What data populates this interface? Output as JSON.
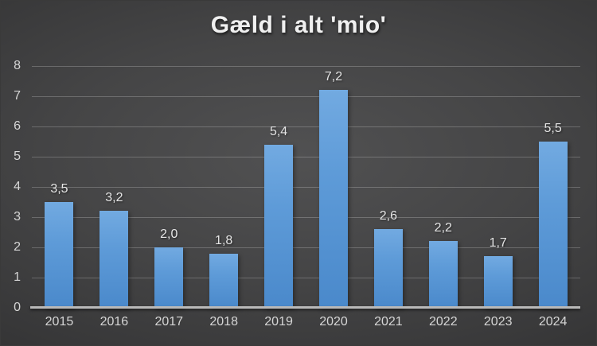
{
  "chart_data": {
    "type": "bar",
    "title": "Gæld i alt 'mio'",
    "categories": [
      "2015",
      "2016",
      "2017",
      "2018",
      "2019",
      "2020",
      "2021",
      "2022",
      "2023",
      "2024"
    ],
    "values": [
      3.5,
      3.2,
      2.0,
      1.8,
      5.4,
      7.2,
      2.6,
      2.2,
      1.7,
      5.5
    ],
    "value_labels": [
      "3,5",
      "3,2",
      "2,0",
      "1,8",
      "5,4",
      "7,2",
      "2,6",
      "2,2",
      "1,7",
      "5,5"
    ],
    "y_tick_labels": [
      "0",
      "1",
      "2",
      "3",
      "4",
      "5",
      "6",
      "7",
      "8"
    ],
    "ylim": [
      0,
      8
    ],
    "ytick_step": 1,
    "grid": true,
    "legend": "none",
    "xlabel": "",
    "ylabel": "",
    "colors": {
      "bar_top": "#72aae1",
      "bar_bottom": "#4a89cb",
      "background_center": "#515152",
      "background_edge": "#1e1e1e",
      "gridline": "rgba(255,255,255,0.22)",
      "axis_line": "#b9b9b9",
      "tick_text": "#d6d6d6",
      "value_label_text": "#e6e6e6",
      "title_text": "#f0f0f0"
    }
  }
}
